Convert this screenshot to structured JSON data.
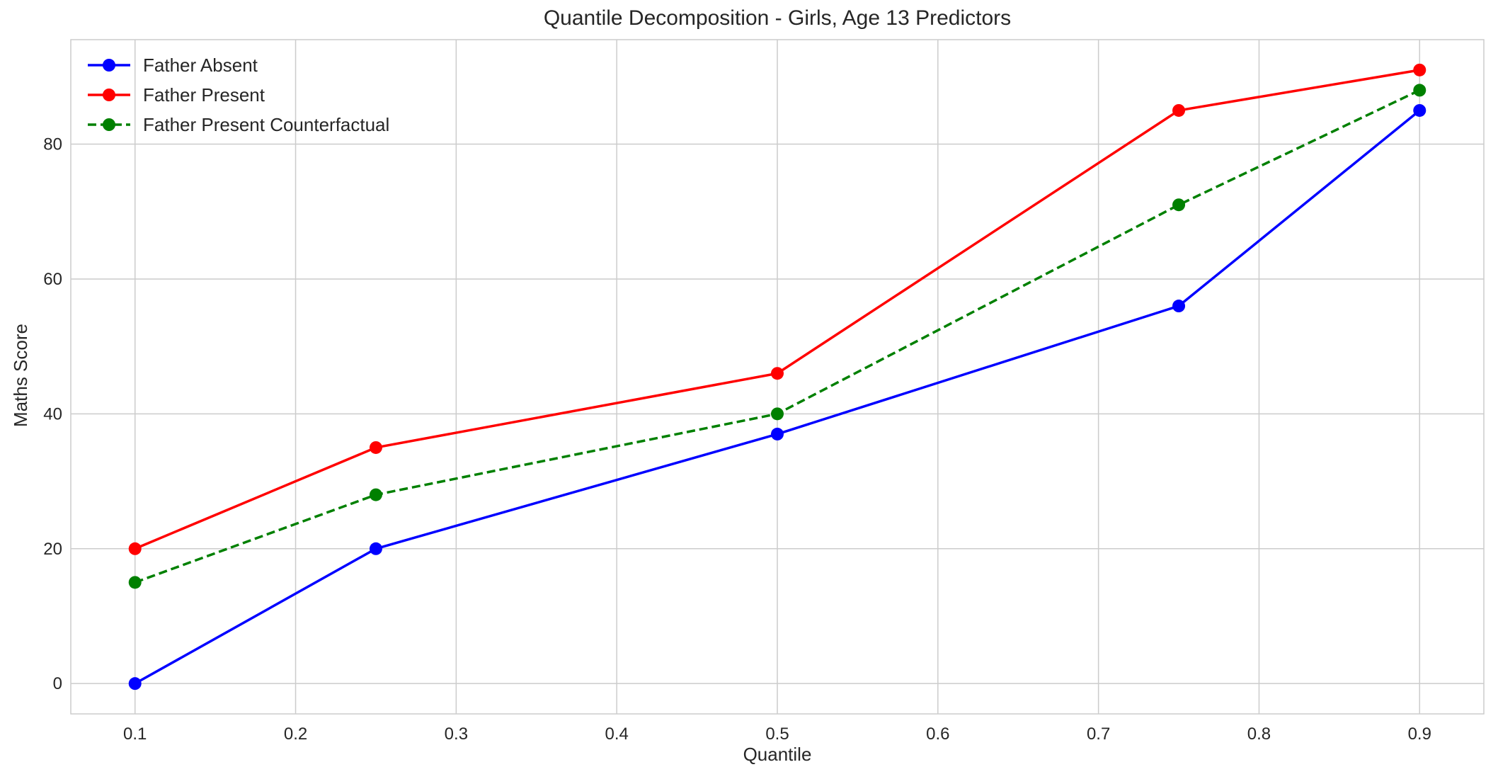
{
  "chart_data": {
    "type": "line",
    "title": "Quantile Decomposition - Girls, Age 13 Predictors",
    "xlabel": "Quantile",
    "ylabel": "Maths Score",
    "x": [
      0.1,
      0.25,
      0.5,
      0.75,
      0.9
    ],
    "xlim": [
      0.06,
      0.94
    ],
    "ylim": [
      -4.5,
      95.5
    ],
    "xticks": [
      0.1,
      0.2,
      0.3,
      0.4,
      0.5,
      0.6,
      0.7,
      0.8,
      0.9
    ],
    "yticks": [
      0,
      20,
      40,
      60,
      80
    ],
    "grid": true,
    "legend_position": "upper-left",
    "series": [
      {
        "name": "Father Absent",
        "values": [
          0,
          20,
          37,
          56,
          85
        ],
        "color": "#0000ff",
        "dashed": false
      },
      {
        "name": "Father Present",
        "values": [
          20,
          35,
          46,
          85,
          91
        ],
        "color": "#ff0000",
        "dashed": false
      },
      {
        "name": "Father Present Counterfactual",
        "values": [
          15,
          28,
          40,
          71,
          88
        ],
        "color": "#008000",
        "dashed": true
      }
    ]
  }
}
